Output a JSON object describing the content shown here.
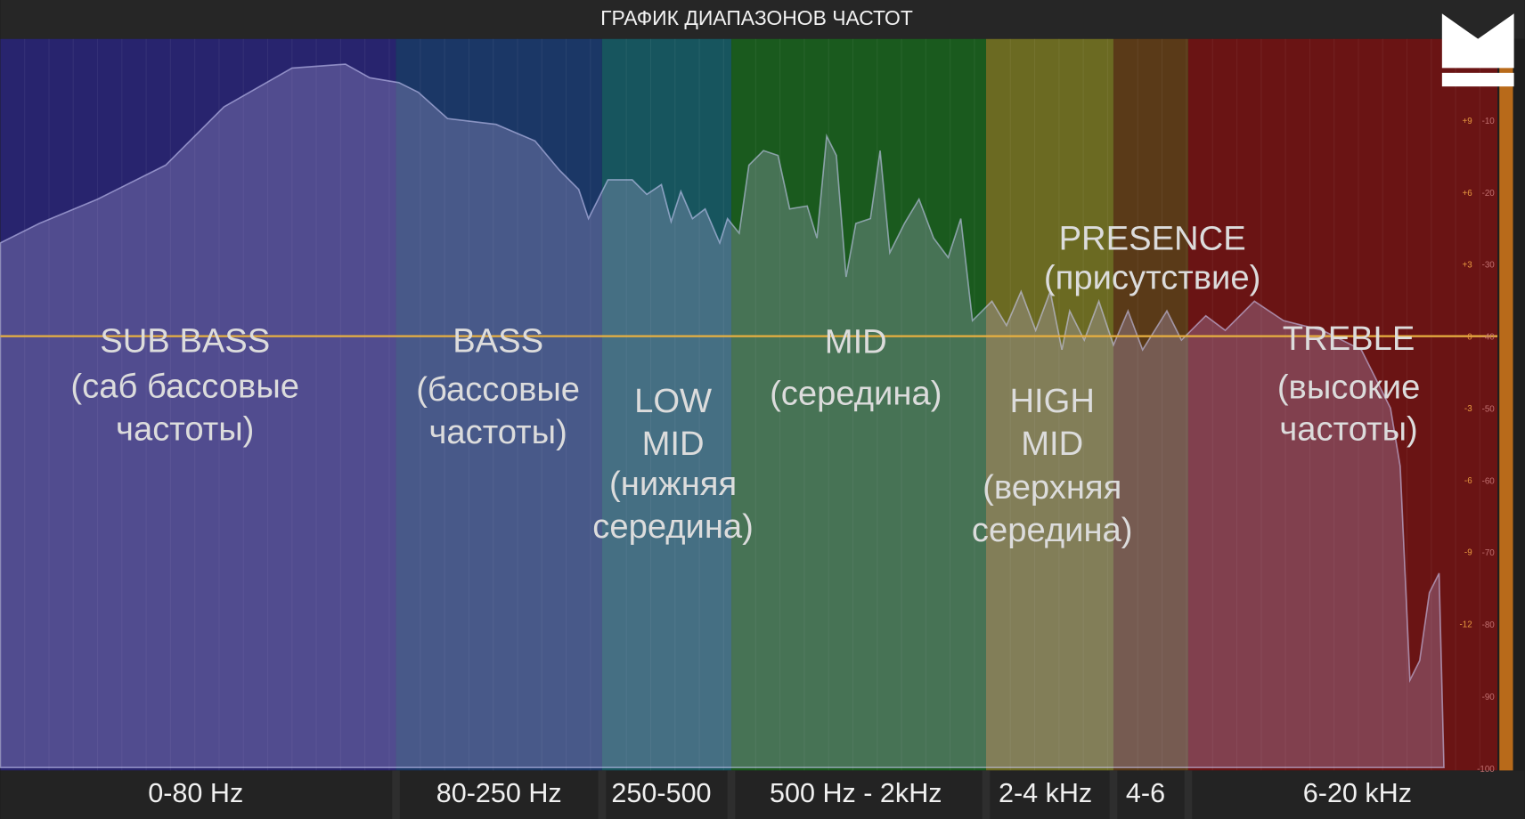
{
  "header": {
    "title": "ГРАФИК ДИАПАЗОНОВ ЧАСТОТ"
  },
  "bands": [
    {
      "label_lines": [
        "SUB BASS",
        "(саб бассовые",
        "частоты)"
      ],
      "range": "0-80 Hz"
    },
    {
      "label_lines": [
        "BASS",
        "(бассовые",
        "частоты)"
      ],
      "range": "80-250 Hz"
    },
    {
      "label_lines": [
        "LOW",
        "MID",
        "(нижняя",
        "середина)"
      ],
      "range": "250-500"
    },
    {
      "label_lines": [
        "MID",
        "(середина)"
      ],
      "range": "500 Hz - 2kHz"
    },
    {
      "label_lines": [
        "HIGH",
        "MID",
        "(верхняя",
        "середина)"
      ],
      "range": "2-4 kHz"
    },
    {
      "label_lines": [
        "PRESENCE",
        "(присутствие)"
      ],
      "range": "4-6"
    },
    {
      "label_lines": [
        "TREBLE",
        "(высокие",
        "частоты)"
      ],
      "range": "6-20 kHz"
    }
  ],
  "scale": {
    "gain": [
      "+9",
      "+6",
      "+3",
      "0",
      "-3",
      "-6",
      "-9",
      "-12"
    ],
    "level": [
      "-10",
      "-20",
      "-30",
      "-40",
      "-50",
      "-60",
      "-70",
      "-80",
      "-90",
      "-100"
    ]
  }
}
